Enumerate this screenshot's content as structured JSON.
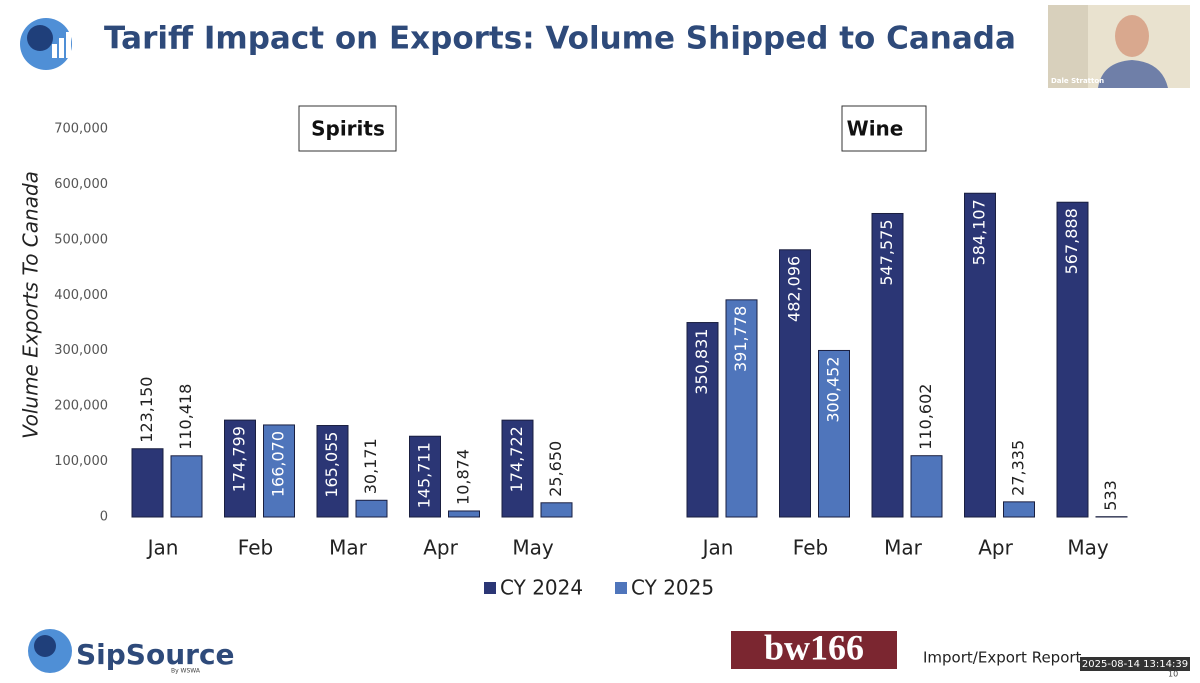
{
  "chart_data": {
    "type": "bar",
    "title": "Tariff Impact on Exports: Volume Shipped to Canada",
    "ylabel": "Volume Exports To Canada",
    "ylim": [
      0,
      700000
    ],
    "yticks": [
      0,
      {
        "value": 100000,
        "label": "100,000"
      },
      {
        "value": 200000,
        "label": "200,000"
      },
      {
        "value": 300000,
        "label": "300,000"
      },
      {
        "value": 400000,
        "label": "400,000"
      },
      {
        "value": 500000,
        "label": "500,000"
      },
      {
        "value": 600000,
        "label": "600,000"
      },
      {
        "value": 700000,
        "label": "700,000"
      }
    ],
    "series": [
      {
        "name": "CY 2024",
        "color": "#2b3675"
      },
      {
        "name": "CY 2025",
        "color": "#4f75bb"
      }
    ],
    "panels": [
      {
        "title": "Spirits",
        "categories": [
          "Jan",
          "Feb",
          "Mar",
          "Apr",
          "May"
        ],
        "values": [
          [
            123150,
            174799,
            165055,
            145711,
            174722
          ],
          [
            110418,
            166070,
            30171,
            10874,
            25650
          ]
        ],
        "value_labels": [
          [
            "123,150",
            "174,799",
            "165,055",
            "145,711",
            "174,722"
          ],
          [
            "110,418",
            "166,070",
            "30,171",
            "10,874",
            "25,650"
          ]
        ]
      },
      {
        "title": "Wine",
        "categories": [
          "Jan",
          "Feb",
          "Mar",
          "Apr",
          "May"
        ],
        "values": [
          [
            350831,
            482096,
            547575,
            584107,
            567888
          ],
          [
            391778,
            300452,
            110602,
            27335,
            533
          ]
        ],
        "value_labels": [
          [
            "350,831",
            "482,096",
            "547,575",
            "584,107",
            "567,888"
          ],
          [
            "391,778",
            "300,452",
            "110,602",
            "27,335",
            "533"
          ]
        ]
      }
    ]
  },
  "slide": {
    "presenter": "Dale Stratton",
    "brand": "SipSource",
    "brand_sub": "By WSWA",
    "partner": "bw166",
    "report": "Import/Export Report",
    "timestamp": "2025-08-14 13:14:39",
    "page": "10"
  }
}
